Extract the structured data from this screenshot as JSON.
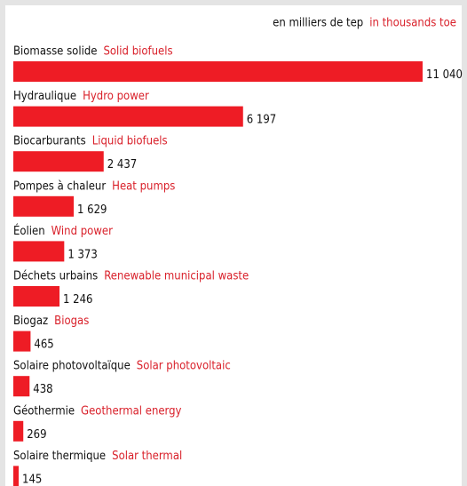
{
  "chart_data": {
    "type": "bar",
    "orientation": "horizontal",
    "unit_label": "en milliers de tep",
    "unit_label_en": "in thousands toe",
    "categories": [
      "Biomasse solide",
      "Hydraulique",
      "Biocarburants",
      "Pompes à chaleur",
      "Éolien",
      "Déchets urbains",
      "Biogaz",
      "Solaire photovoltaïque",
      "Géothermie",
      "Solaire thermique"
    ],
    "categories_en": [
      "Solid biofuels",
      "Hydro power",
      "Liquid biofuels",
      "Heat pumps",
      "Wind power",
      "Renewable municipal waste",
      "Biogas",
      "Solar photovoltaic",
      "Geothermal energy",
      "Solar thermal"
    ],
    "values": [
      11040,
      6197,
      2437,
      1629,
      1373,
      1246,
      465,
      438,
      269,
      145
    ],
    "value_labels": [
      "11 040",
      "6 197",
      "2 437",
      "1 629",
      "1 373",
      "1 246",
      "465",
      "438",
      "269",
      "145"
    ],
    "color": "#ee1c25"
  }
}
